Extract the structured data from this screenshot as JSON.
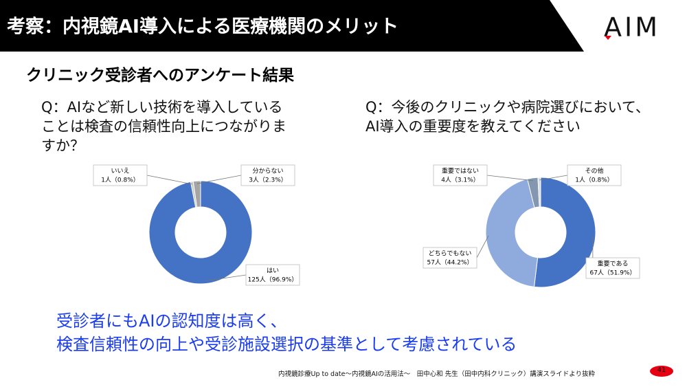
{
  "header": {
    "title": "考察：内視鏡AI導入による医療機関のメリット",
    "logo": "AIM"
  },
  "subtitle": "クリニック受診者へのアンケート結果",
  "chart_data": [
    {
      "type": "donut",
      "title": "Q：AIなど新しい技術を導入していることは検査の信頼性向上につながりますか？",
      "categories": [
        "はい",
        "いいえ",
        "分からない"
      ],
      "values": [
        96.9,
        0.8,
        2.3
      ],
      "value_labels": [
        "125人（96.9%）",
        "1人（0.8%）",
        "3人（2.3%）"
      ],
      "colors": [
        "#4472c4",
        "#c9c9c9",
        "#a5a5a5"
      ]
    },
    {
      "type": "donut",
      "title": "Q：今後のクリニックや病院選びにおいて、AI導入の重要度を教えてください",
      "categories": [
        "重要である",
        "どちらでもない",
        "重要ではない",
        "その他"
      ],
      "values": [
        51.9,
        44.2,
        3.1,
        0.8
      ],
      "value_labels": [
        "67人（51.9%）",
        "57人（44.2%）",
        "4人（3.1%）",
        "1人（0.8%）"
      ],
      "colors": [
        "#4472c4",
        "#8faadc",
        "#8497b0",
        "#d6dce5"
      ]
    }
  ],
  "conclusion": [
    "受診者にもAIの認知度は高く、",
    "検査信頼性の向上や受診施設選択の基準として考慮されている"
  ],
  "footer": "内視鏡診療Up to date～内視鏡AIの活用法～　田中心和 先生（田中内科クリニック）講演スライドより抜粋",
  "page_number": "41"
}
